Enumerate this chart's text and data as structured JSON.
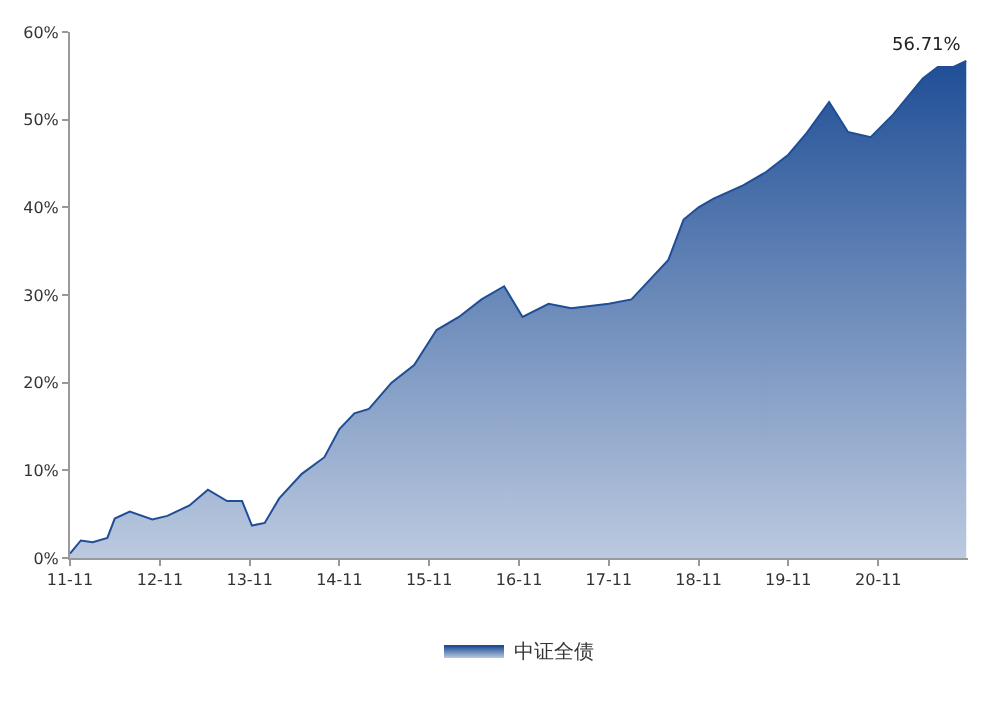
{
  "chart_data": {
    "type": "area",
    "x": [
      "2011-11-01",
      "2011-12-15",
      "2012-02-01",
      "2012-04-01",
      "2012-05-01",
      "2012-07-01",
      "2012-10-01",
      "2012-12-01",
      "2013-03-01",
      "2013-05-15",
      "2013-08-01",
      "2013-10-01",
      "2013-11-10",
      "2014-01-01",
      "2014-03-01",
      "2014-06-01",
      "2014-09-01",
      "2014-11-01",
      "2015-01-01",
      "2015-03-01",
      "2015-06-01",
      "2015-09-01",
      "2015-12-01",
      "2016-03-01",
      "2016-06-01",
      "2016-09-01",
      "2016-11-15",
      "2017-03-01",
      "2017-06-01",
      "2017-11-01",
      "2018-02-01",
      "2018-07-01",
      "2018-09-01",
      "2018-11-01",
      "2019-01-01",
      "2019-05-01",
      "2019-08-01",
      "2019-11-01",
      "2020-01-15",
      "2020-04-15",
      "2020-07-01",
      "2020-10-01",
      "2021-01-01",
      "2021-05-01",
      "2021-07-01",
      "2021-09-01",
      "2021-10-25"
    ],
    "series": [
      {
        "name": "中证全债",
        "color": "#1f4e96",
        "values": [
          0.5,
          2.0,
          1.8,
          2.3,
          4.5,
          5.3,
          4.4,
          4.8,
          6.0,
          7.8,
          6.5,
          6.5,
          3.7,
          4.0,
          6.8,
          9.6,
          11.5,
          14.7,
          16.5,
          17.0,
          20.0,
          22.0,
          26.0,
          27.5,
          29.5,
          31.0,
          27.5,
          29.0,
          28.5,
          29.0,
          29.5,
          34.0,
          38.6,
          40.0,
          41.0,
          42.5,
          44.0,
          46.0,
          48.5,
          52.0,
          48.6,
          48.0,
          50.6,
          54.7,
          56.0,
          56.0,
          56.71
        ]
      }
    ],
    "xlim": [
      "2011-11-01",
      "2021-11-01"
    ],
    "xticks": [
      {
        "value": "2011-11-01",
        "label": "11-11"
      },
      {
        "value": "2012-11-01",
        "label": "12-11"
      },
      {
        "value": "2013-11-01",
        "label": "13-11"
      },
      {
        "value": "2014-11-01",
        "label": "14-11"
      },
      {
        "value": "2015-11-01",
        "label": "15-11"
      },
      {
        "value": "2016-11-01",
        "label": "16-11"
      },
      {
        "value": "2017-11-01",
        "label": "17-11"
      },
      {
        "value": "2018-11-01",
        "label": "18-11"
      },
      {
        "value": "2019-11-01",
        "label": "19-11"
      },
      {
        "value": "2020-11-01",
        "label": "20-11"
      }
    ],
    "ylim": [
      0,
      60
    ],
    "yticks": [
      {
        "value": 0,
        "label": "0%"
      },
      {
        "value": 10,
        "label": "10%"
      },
      {
        "value": 20,
        "label": "20%"
      },
      {
        "value": 30,
        "label": "30%"
      },
      {
        "value": 40,
        "label": "40%"
      },
      {
        "value": 50,
        "label": "50%"
      },
      {
        "value": 60,
        "label": "60%"
      }
    ],
    "annotations": [
      {
        "text": "56.71%",
        "x": "2021-10-25",
        "y": 56.71
      }
    ],
    "legend": "bottom",
    "marker": "none"
  }
}
